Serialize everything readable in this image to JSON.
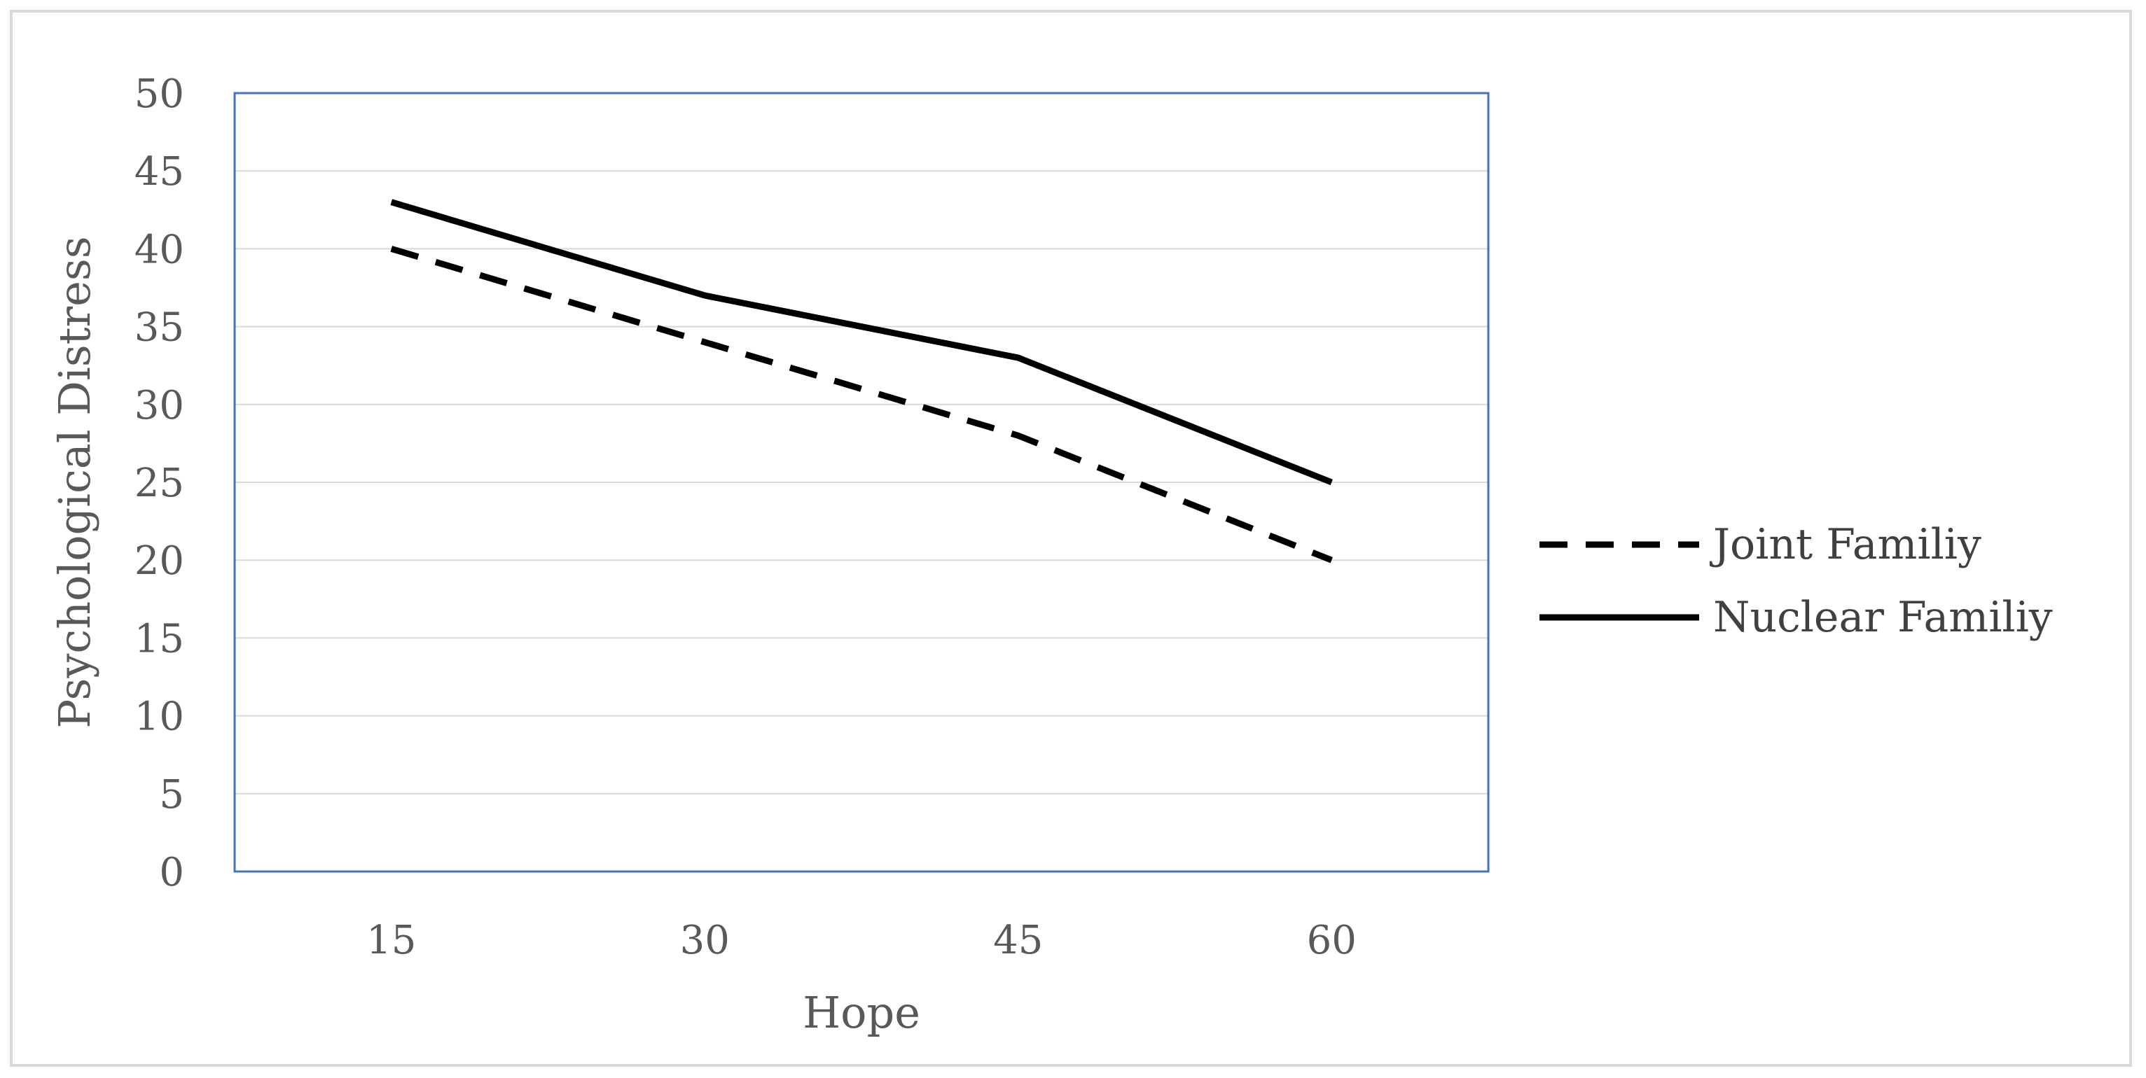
{
  "chart_data": {
    "type": "line",
    "title": "",
    "xlabel": "Hope",
    "ylabel": "Psychological Distress",
    "categories": [
      "15",
      "30",
      "45",
      "60"
    ],
    "ylim": [
      0,
      50
    ],
    "yticks": [
      "0",
      "5",
      "10",
      "15",
      "20",
      "25",
      "30",
      "35",
      "40",
      "45",
      "50"
    ],
    "grid": true,
    "legend_position": "right",
    "series": [
      {
        "name": "Joint Familiy",
        "values": [
          40,
          34,
          28,
          20
        ],
        "style": "dashed",
        "color": "#000000"
      },
      {
        "name": "Nuclear Familiy",
        "values": [
          43,
          37,
          33,
          25
        ],
        "style": "solid",
        "color": "#000000"
      }
    ],
    "colors": {
      "grid": "#d9d9d9",
      "plot_border": "#4472c4",
      "text": "#595959"
    }
  }
}
